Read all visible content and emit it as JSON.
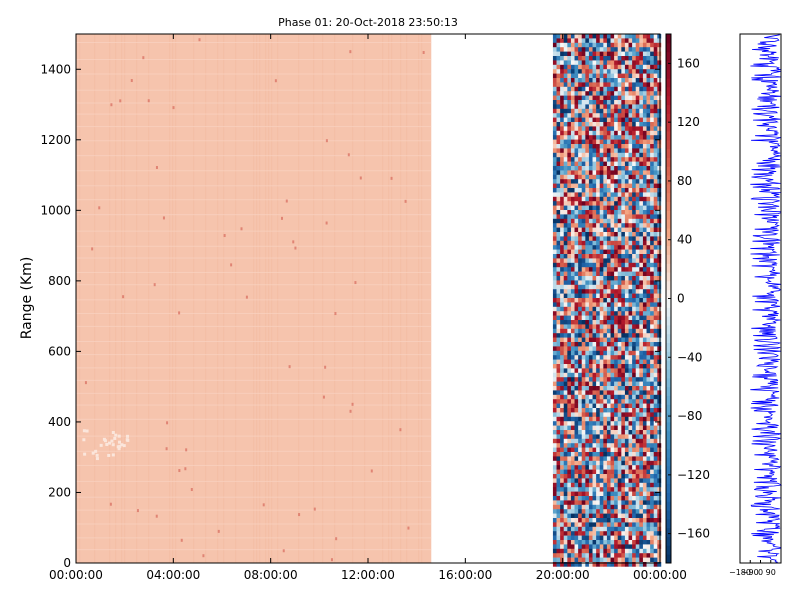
{
  "chart_data": [
    {
      "type": "heatmap",
      "title": "Phase 01: 20-Oct-2018 23:50:13",
      "xlabel": "",
      "ylabel": "Range (Km)",
      "x_ticks": [
        "00:00:00",
        "04:00:00",
        "08:00:00",
        "12:00:00",
        "16:00:00",
        "20:00:00",
        "00:00:00"
      ],
      "x_range_hours": [
        0,
        24
      ],
      "y_ticks": [
        0,
        200,
        400,
        600,
        800,
        1000,
        1200,
        1400
      ],
      "ylim": [
        0,
        1500
      ],
      "colorbar": {
        "ticks": [
          160,
          120,
          80,
          40,
          0,
          -40,
          -80,
          -120,
          -160
        ],
        "range": [
          -180,
          180
        ],
        "colormap": "RdBu_r"
      },
      "data_segments": [
        {
          "start_hour": 0.0,
          "end_hour": 14.6,
          "pattern": "uniform",
          "typical_value": 45,
          "note_values": {
            "speckle_value": 100,
            "low_range_feature_km": [
              300,
              380
            ]
          }
        },
        {
          "start_hour": 14.6,
          "end_hour": 19.6,
          "pattern": "no data"
        },
        {
          "start_hour": 19.6,
          "end_hour": 24.0,
          "pattern": "random noise",
          "value_range": [
            -180,
            180
          ]
        }
      ],
      "colors": {
        "uniform_fill": "#f6c4ad",
        "positive_max": "#67001f",
        "negative_max": "#053061",
        "neutral": "#f7f7f7"
      }
    },
    {
      "type": "line",
      "title": "",
      "x_ticks": [
        "−180",
        "−90",
        "0",
        "90"
      ],
      "xlim": [
        -180,
        180
      ],
      "ylim": [
        0,
        1500
      ],
      "series_color": "#0000ff",
      "pattern": "noisy profile spanning roughly -90 to 180 across all ranges"
    }
  ]
}
